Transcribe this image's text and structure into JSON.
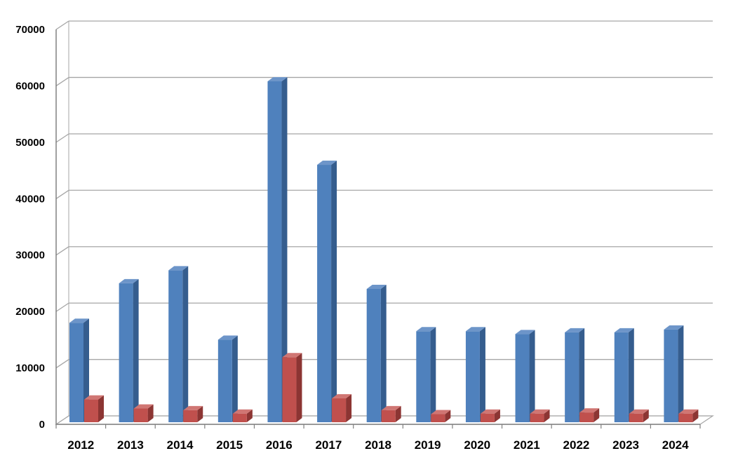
{
  "chart_data": {
    "type": "bar",
    "categories": [
      "2012",
      "2013",
      "2014",
      "2015",
      "2016",
      "2017",
      "2018",
      "2019",
      "2020",
      "2021",
      "2022",
      "2023",
      "2024"
    ],
    "series": [
      {
        "values": [
          18000,
          25000,
          27300,
          15000,
          60800,
          46000,
          24000,
          16500,
          16500,
          16000,
          16300,
          16300,
          16800
        ]
      },
      {
        "values": [
          4400,
          2800,
          2500,
          1900,
          11900,
          4600,
          2500,
          1800,
          1900,
          1900,
          2100,
          1900,
          1900
        ]
      }
    ],
    "colors": {
      "series_front": [
        "#4f81bd",
        "#c0504d"
      ],
      "series_side": [
        "#355d8e",
        "#8c3533"
      ],
      "series_top": [
        "#6d95c9",
        "#d07673"
      ],
      "gridline": "#a6a6a6",
      "axis": "#808080"
    },
    "ylim": [
      0,
      70000
    ],
    "yticks": [
      "0",
      "10000",
      "20000",
      "30000",
      "40000",
      "50000",
      "60000",
      "70000"
    ],
    "grid": true,
    "style": "3d-clustered-column",
    "legend": "none"
  }
}
